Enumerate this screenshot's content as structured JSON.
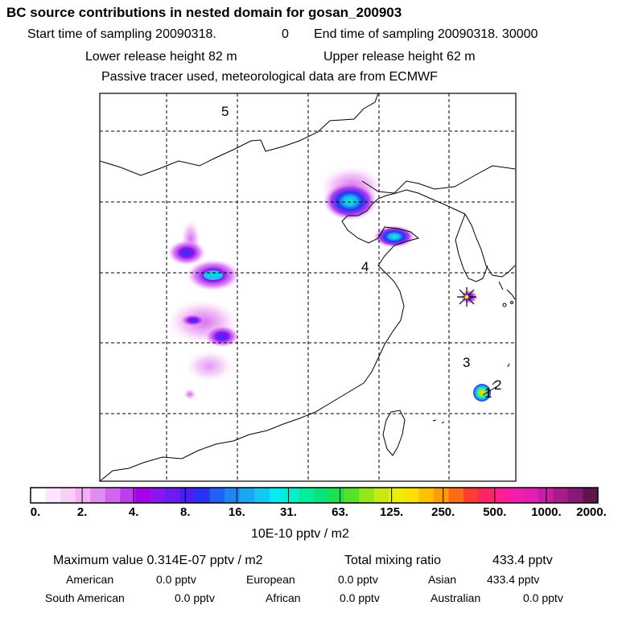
{
  "header": {
    "title": "BC  source contributions in nested domain for gosan_200903",
    "start_label": "Start time of sampling 20090318.",
    "start_hour": "0",
    "end_label": "End time of sampling 20090318. 30000",
    "lower_height": "Lower release height   82 m",
    "upper_height": "Upper release height   62 m",
    "tracer_note": "Passive tracer used, meteorological data are from ECMWF"
  },
  "map": {
    "region_labels": [
      "5",
      "4",
      "3",
      "1",
      "2"
    ],
    "receptor": "Gosan (star marker)"
  },
  "colorbar": {
    "ticks": [
      "0.",
      "2.",
      "4.",
      "8.",
      "16.",
      "31.",
      "63.",
      "125.",
      "250.",
      "500.",
      "1000.",
      "2000."
    ],
    "colors": [
      "#ffffff",
      "#fde6fb",
      "#fbcdf7",
      "#f4b0f3",
      "#e18cf0",
      "#d066ee",
      "#bd3df0",
      "#a800ee",
      "#8a16f0",
      "#6b1cf2",
      "#4a1ef4",
      "#2a31f6",
      "#1f63f4",
      "#1d86f3",
      "#1aa6f3",
      "#13c8f2",
      "#06ecec",
      "#02f0cb",
      "#02ec9c",
      "#07e577",
      "#1ee04c",
      "#56e228",
      "#93e617",
      "#c6ea12",
      "#eded0c",
      "#fde004",
      "#ffc000",
      "#ff9c00",
      "#ff6a1a",
      "#ff3d30",
      "#ff2565",
      "#ff1f93",
      "#f21fae",
      "#e11fb2",
      "#c71ea2",
      "#a71c89",
      "#861974",
      "#5f1450"
    ],
    "units": "10E-10 pptv / m2"
  },
  "stats": {
    "max_label": "Maximum value  0.314E-07 pptv / m2",
    "total_label": "Total mixing ratio",
    "total_value": "433.4 pptv",
    "regions": [
      {
        "name": "American",
        "value": "0.0 pptv"
      },
      {
        "name": "European",
        "value": "0.0 pptv"
      },
      {
        "name": "Asian",
        "value": "433.4 pptv"
      },
      {
        "name": "South American",
        "value": "0.0 pptv"
      },
      {
        "name": "African",
        "value": "0.0 pptv"
      },
      {
        "name": "Australian",
        "value": "0.0 pptv"
      }
    ]
  }
}
